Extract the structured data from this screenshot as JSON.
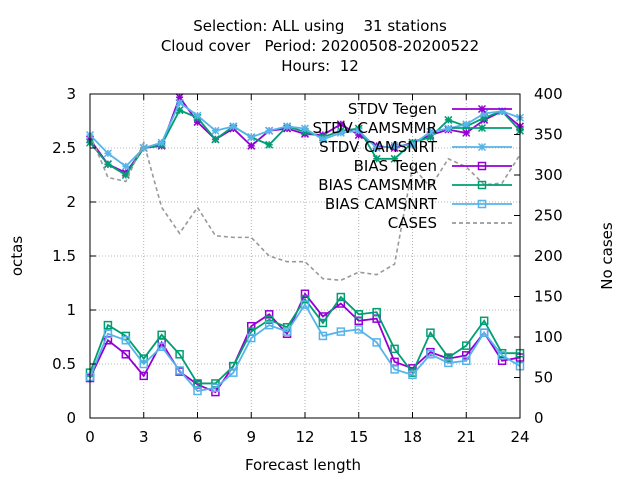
{
  "title": {
    "line1": "Selection: ALL using    31 stations",
    "line2": "Cloud cover   Period: 20200508-20200522",
    "line3": "Hours:  12"
  },
  "chart_data": {
    "type": "line",
    "xlabel": "Forecast length",
    "ylabel": "octas",
    "y2label": "No cases",
    "xlim": [
      0,
      24
    ],
    "ylim": [
      0,
      3
    ],
    "y2lim": [
      0,
      400
    ],
    "xticks": [
      0,
      3,
      6,
      9,
      12,
      15,
      18,
      21,
      24
    ],
    "yticks": [
      0,
      0.5,
      1,
      1.5,
      2,
      2.5,
      3
    ],
    "yticklabels": [
      "0",
      "0.5",
      "1",
      "1.5",
      "2",
      "2.5",
      "3"
    ],
    "y2ticks": [
      0,
      50,
      100,
      150,
      200,
      250,
      300,
      350,
      400
    ],
    "grid": true,
    "legend_position": "top-right",
    "x": [
      0,
      1,
      2,
      3,
      4,
      5,
      6,
      7,
      8,
      9,
      10,
      11,
      12,
      13,
      14,
      15,
      16,
      17,
      18,
      19,
      20,
      21,
      22,
      23,
      24
    ],
    "series": [
      {
        "name": "STDV Tegen",
        "axis": "y",
        "color": "#9400d3",
        "marker": "x",
        "values": [
          2.58,
          2.35,
          2.27,
          2.5,
          2.52,
          2.97,
          2.74,
          2.58,
          2.68,
          2.52,
          2.66,
          2.68,
          2.63,
          2.62,
          2.72,
          2.62,
          2.52,
          2.5,
          2.55,
          2.62,
          2.67,
          2.64,
          2.76,
          2.84,
          2.7
        ]
      },
      {
        "name": "STDV CAMSMMR",
        "axis": "y",
        "color": "#009e73",
        "marker": "x",
        "values": [
          2.55,
          2.35,
          2.25,
          2.5,
          2.53,
          2.85,
          2.78,
          2.58,
          2.7,
          2.6,
          2.53,
          2.7,
          2.65,
          2.6,
          2.66,
          2.68,
          2.4,
          2.4,
          2.55,
          2.6,
          2.76,
          2.7,
          2.78,
          2.84,
          2.66
        ]
      },
      {
        "name": "STDV CAMSNRT",
        "axis": "y",
        "color": "#56b4e9",
        "marker": "x",
        "values": [
          2.62,
          2.45,
          2.33,
          2.5,
          2.55,
          2.92,
          2.8,
          2.66,
          2.7,
          2.6,
          2.66,
          2.7,
          2.68,
          2.58,
          2.64,
          2.66,
          2.5,
          2.52,
          2.53,
          2.65,
          2.68,
          2.72,
          2.82,
          2.84,
          2.78
        ]
      },
      {
        "name": "BIAS Tegen",
        "axis": "y",
        "color": "#9400d3",
        "marker": "square",
        "values": [
          0.37,
          0.72,
          0.59,
          0.39,
          0.7,
          0.43,
          0.31,
          0.24,
          0.48,
          0.85,
          0.96,
          0.78,
          1.15,
          0.94,
          1.06,
          0.9,
          0.92,
          0.52,
          0.46,
          0.61,
          0.55,
          0.58,
          0.79,
          0.53,
          0.56
        ]
      },
      {
        "name": "BIAS CAMSMMR",
        "axis": "y",
        "color": "#009e73",
        "marker": "square",
        "values": [
          0.42,
          0.86,
          0.76,
          0.55,
          0.77,
          0.59,
          0.32,
          0.32,
          0.48,
          0.8,
          0.91,
          0.84,
          1.1,
          0.88,
          1.12,
          0.96,
          0.98,
          0.64,
          0.42,
          0.79,
          0.56,
          0.67,
          0.9,
          0.6,
          0.6
        ]
      },
      {
        "name": "BIAS CAMSNRT",
        "axis": "y",
        "color": "#56b4e9",
        "marker": "square",
        "values": [
          0.38,
          0.78,
          0.72,
          0.5,
          0.66,
          0.44,
          0.25,
          0.28,
          0.42,
          0.74,
          0.86,
          0.8,
          1.05,
          0.76,
          0.8,
          0.82,
          0.7,
          0.45,
          0.4,
          0.59,
          0.51,
          0.53,
          0.79,
          0.58,
          0.48
        ]
      },
      {
        "name": "CASES",
        "axis": "y2",
        "color": "#999999",
        "marker": "none",
        "dashed": true,
        "values": [
          350,
          297,
          292,
          340,
          260,
          228,
          260,
          225,
          223,
          223,
          200,
          193,
          193,
          172,
          170,
          180,
          177,
          190,
          310,
          285,
          320,
          310,
          288,
          290,
          325
        ]
      }
    ]
  }
}
